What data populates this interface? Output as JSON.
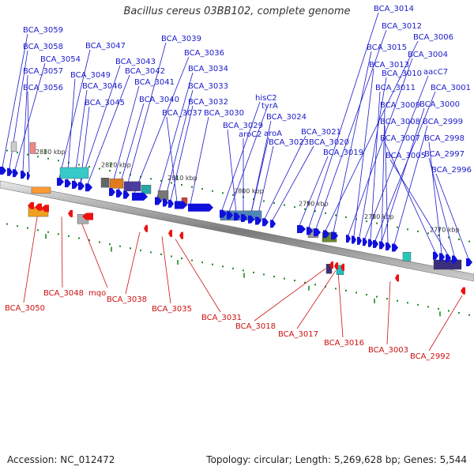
{
  "title": "Bacillus cereus 03BB102, complete genome",
  "footer": {
    "accession_label": "Accession:",
    "accession": "NC_012472",
    "topology_label": "Topology:",
    "topology": "circular",
    "length_label": "Length:",
    "length": "5,269,628 bp",
    "genes_label": "Genes:",
    "genes": "5,544"
  },
  "colors": {
    "forward_gene": "#1010dd",
    "reverse_gene": "#ee1111",
    "forward_label": "#1a1acc",
    "reverse_label": "#cc1111",
    "backbone": "#8a8a8a",
    "tick": "#228822"
  },
  "scale_ticks": [
    "2830 kbp",
    "2820 kbp",
    "2810 kbp",
    "2800 kbp",
    "2790 kbp",
    "2780 kbp",
    "2770 kbp"
  ],
  "forward_labels": [
    "BCA_3059",
    "BCA_3058",
    "BCA_3054",
    "BCA_3057",
    "BCA_3056",
    "BCA_3047",
    "BCA_3049",
    "BCA_3046",
    "BCA_3045",
    "BCA_3043",
    "BCA_3042",
    "BCA_3041",
    "BCA_3040",
    "BCA_3039",
    "BCA_3036",
    "BCA_3034",
    "BCA_3033",
    "BCA_3032",
    "BCA_3037",
    "BCA_3030",
    "hisC2",
    "tyrA",
    "BCA_3029",
    "aroC2",
    "BCA_3024",
    "aroA",
    "BCA_3023",
    "BCA_3021",
    "BCA_3020",
    "BCA_3019",
    "BCA_3014",
    "BCA_3012",
    "BCA_3006",
    "BCA_3015",
    "BCA_3004",
    "BCA_3013",
    "BCA_3010",
    "aacC7",
    "BCA_3011",
    "BCA_3001",
    "BCA_3009",
    "BCA_3000",
    "BCA_3008",
    "BCA_2999",
    "BCA_3007",
    "BCA_2998",
    "BCA_3005",
    "BCA_2997",
    "BCA_2996"
  ],
  "reverse_labels": [
    "BCA_3050",
    "BCA_3048",
    "mqo",
    "BCA_3038",
    "BCA_3035",
    "BCA_3031",
    "BCA_3018",
    "BCA_3017",
    "BCA_3016",
    "BCA_3003",
    "BCA_2992"
  ]
}
